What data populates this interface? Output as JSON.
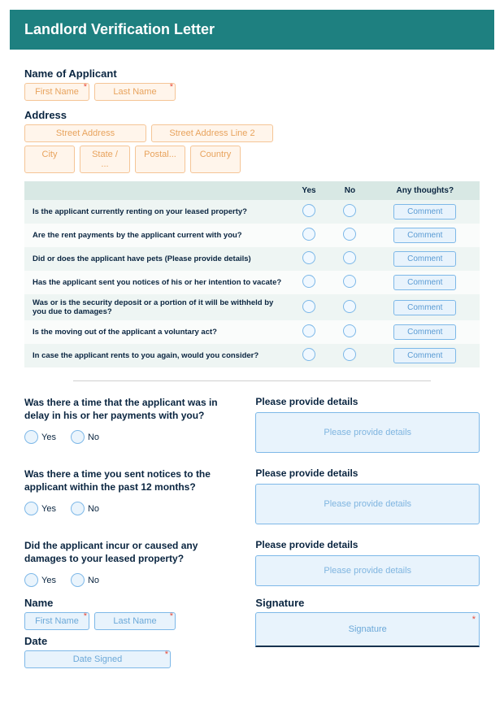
{
  "header": {
    "title": "Landlord Verification Letter"
  },
  "applicant": {
    "label": "Name of Applicant",
    "first": "First Name",
    "last": "Last Name"
  },
  "address": {
    "label": "Address",
    "street": "Street Address",
    "street2": "Street Address Line 2",
    "city": "City",
    "state": "State / ...",
    "postal": "Postal...",
    "country": "Country"
  },
  "qtable": {
    "headers": {
      "yes": "Yes",
      "no": "No",
      "thoughts": "Any thoughts?"
    },
    "comment_label": "Comment",
    "rows": [
      "Is the applicant currently renting on your leased property?",
      "Are the rent payments by the applicant current with you?",
      "Did or does the applicant have pets (Please provide details)",
      "Has the applicant sent you notices of his or her intention to vacate?",
      "Was or is the security deposit or a portion of it will be withheld by you due to damages?",
      "Is the moving out of the applicant a voluntary act?",
      "In case the applicant rents to you again, would you consider?"
    ]
  },
  "yn": {
    "yes": "Yes",
    "no": "No"
  },
  "details": {
    "label": "Please provide details",
    "placeholder": "Please provide details",
    "q1": "Was there a time that the applicant was in delay in his or her payments with you?",
    "q2": "Was there a time you sent notices to the applicant within the past 12 months?",
    "q3": "Did the applicant incur or caused any damages to your leased property?"
  },
  "bottom": {
    "name_label": "Name",
    "first": "First Name",
    "last": "Last Name",
    "date_label": "Date",
    "date_placeholder": "Date Signed",
    "sig_label": "Signature",
    "sig_placeholder": "Signature"
  }
}
